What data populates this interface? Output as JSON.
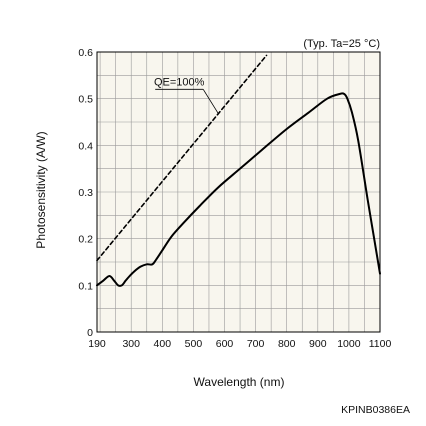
{
  "chart_data": {
    "type": "line",
    "title": "",
    "xlabel": "Wavelength (nm)",
    "ylabel": "Photosensitivity (A/W)",
    "condition": "(Typ. Ta=25 °C)",
    "figure_code": "KPINB0386EA",
    "xlim": [
      190,
      1100
    ],
    "ylim": [
      0,
      0.6
    ],
    "x_ticks": [
      "190",
      "300",
      "400",
      "500",
      "600",
      "700",
      "800",
      "900",
      "1000",
      "1100"
    ],
    "y_ticks": [
      "0",
      "0.1",
      "0.2",
      "0.3",
      "0.4",
      "0.5",
      "0.6"
    ],
    "x_tick_values": [
      190,
      300,
      400,
      500,
      600,
      700,
      800,
      900,
      1000,
      1100
    ],
    "y_tick_values": [
      0,
      0.1,
      0.2,
      0.3,
      0.4,
      0.5,
      0.6
    ],
    "grid": true,
    "background": "#f8f6ee",
    "series": [
      {
        "name": "",
        "style": "solid",
        "color": "#000000",
        "x": [
          190,
          210,
          230,
          245,
          258,
          270,
          282,
          295,
          310,
          330,
          350,
          368,
          380,
          400,
          430,
          470,
          520,
          580,
          650,
          720,
          800,
          870,
          930,
          970,
          985,
          995,
          1010,
          1030,
          1060,
          1080,
          1100
        ],
        "y": [
          0.1,
          0.11,
          0.12,
          0.11,
          0.1,
          0.1,
          0.11,
          0.12,
          0.13,
          0.14,
          0.145,
          0.145,
          0.155,
          0.175,
          0.205,
          0.235,
          0.27,
          0.31,
          0.35,
          0.39,
          0.435,
          0.47,
          0.5,
          0.51,
          0.51,
          0.5,
          0.47,
          0.41,
          0.285,
          0.205,
          0.125
        ]
      },
      {
        "name": "QE=100%",
        "style": "dashed",
        "color": "#000000",
        "x": [
          190,
          300,
          400,
          500,
          600,
          700,
          735
        ],
        "y": [
          0.1532,
          0.2419,
          0.3226,
          0.4032,
          0.4839,
          0.5645,
          0.5927
        ]
      }
    ],
    "annotations": [
      {
        "text": "QE=100%",
        "points_to": {
          "x": 580,
          "y": 0.468
        },
        "label_pos": {
          "x": 300,
          "y": 0.52
        }
      }
    ]
  }
}
